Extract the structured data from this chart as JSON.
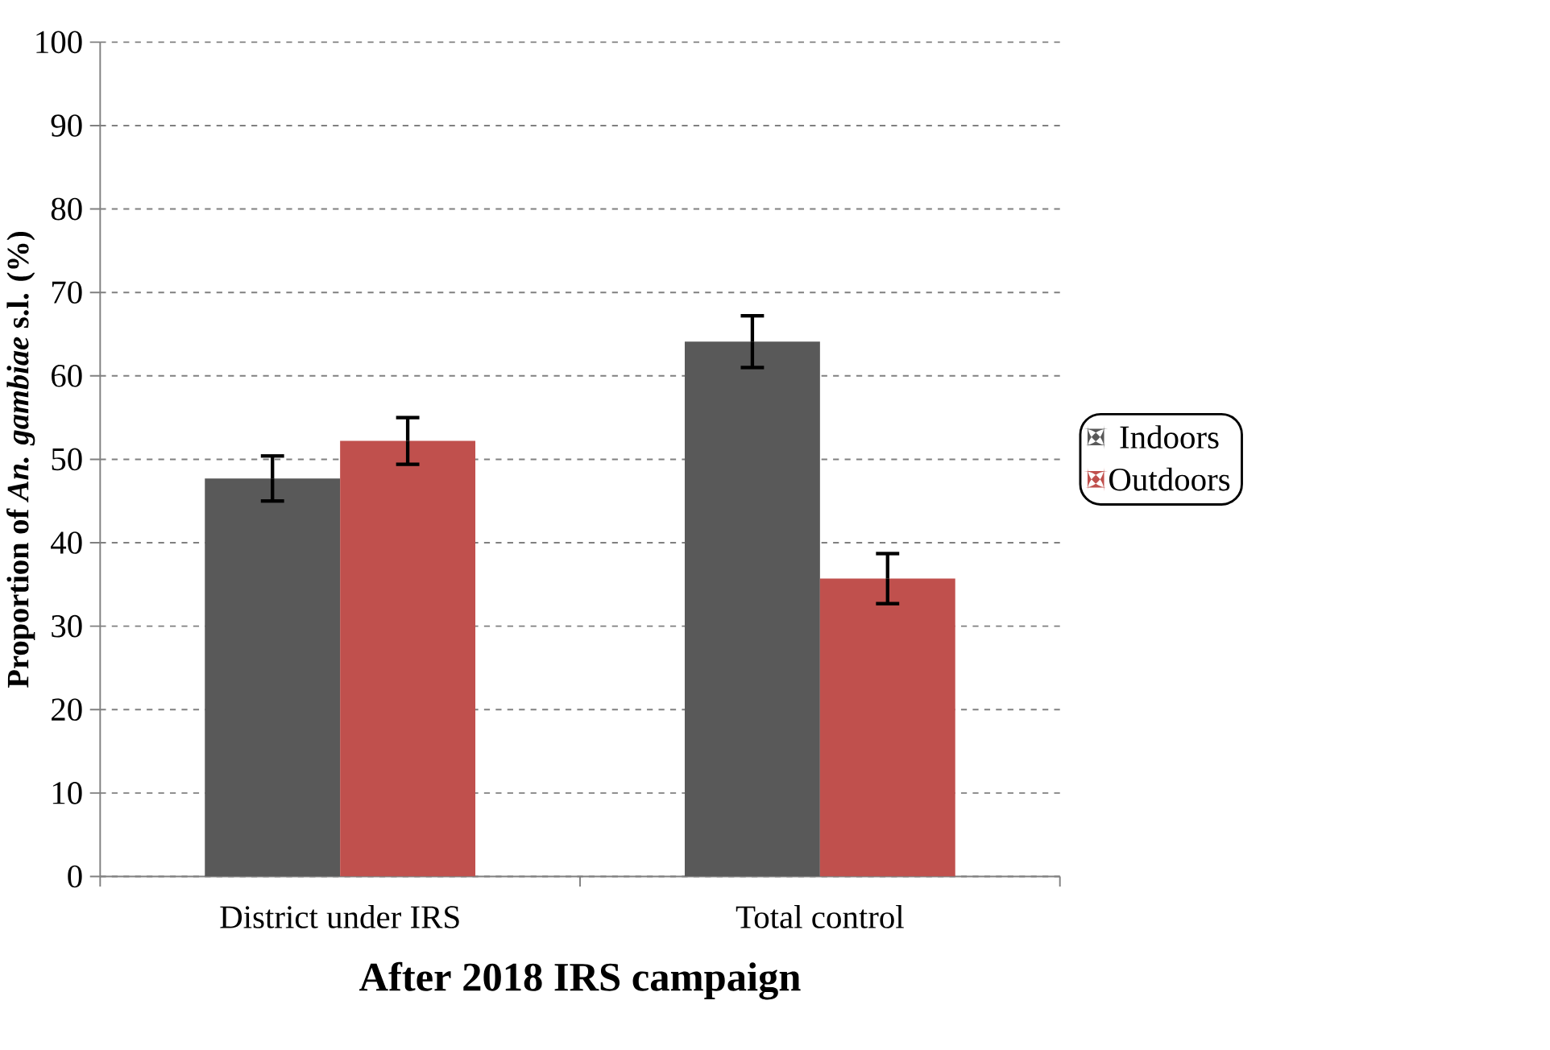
{
  "chart_data": {
    "type": "bar",
    "xlabel": "After 2018 IRS campaign",
    "ylabel": "Proportion of *An. gambiae* s.l. (%)",
    "categories": [
      "District under IRS",
      "Total control"
    ],
    "series": [
      {
        "name": "Indoors",
        "color": "#595959",
        "values": [
          47.7,
          64.1
        ],
        "errors": [
          2.7,
          3.1
        ]
      },
      {
        "name": "Outdoors",
        "color": "#c0504d",
        "values": [
          52.2,
          35.7
        ],
        "errors": [
          2.8,
          3.0
        ]
      }
    ],
    "ylim": [
      0,
      100
    ],
    "yticks": [
      0,
      10,
      20,
      30,
      40,
      50,
      60,
      70,
      80,
      90,
      100
    ],
    "grid": "y",
    "legend": "right"
  }
}
